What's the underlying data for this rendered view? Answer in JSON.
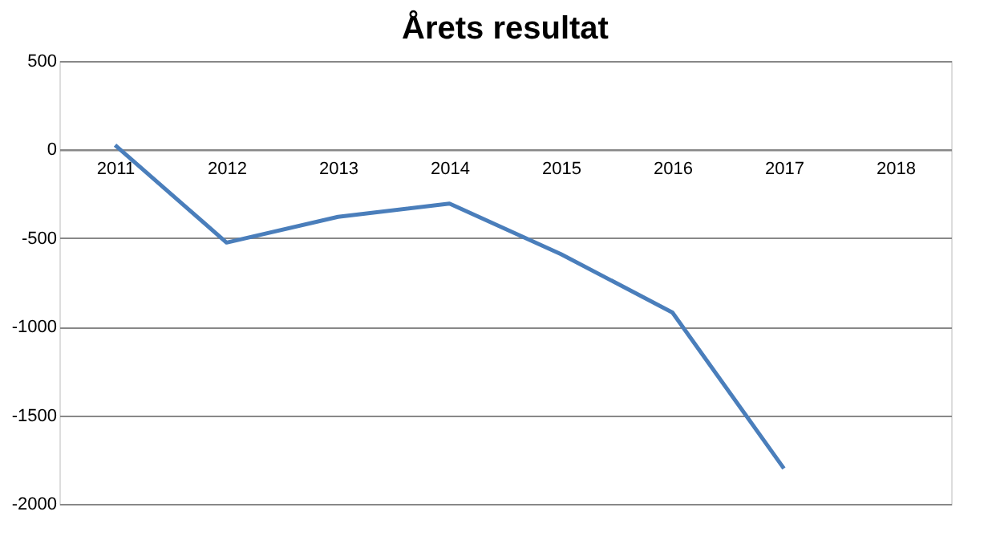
{
  "chart_data": {
    "type": "line",
    "title": "Årets resultat",
    "categories": [
      "2011",
      "2012",
      "2013",
      "2014",
      "2015",
      "2016",
      "2017",
      "2018"
    ],
    "series": [
      {
        "color": "#4a7ebb",
        "values": [
          25,
          -525,
          -380,
          -305,
          -590,
          -920,
          -1800,
          null
        ]
      }
    ],
    "ylim": [
      -2000,
      500
    ],
    "yticks": [
      -2000,
      -1500,
      -1000,
      -500,
      0,
      500
    ],
    "grid": "y",
    "marker": "none",
    "line_style": "solid"
  }
}
